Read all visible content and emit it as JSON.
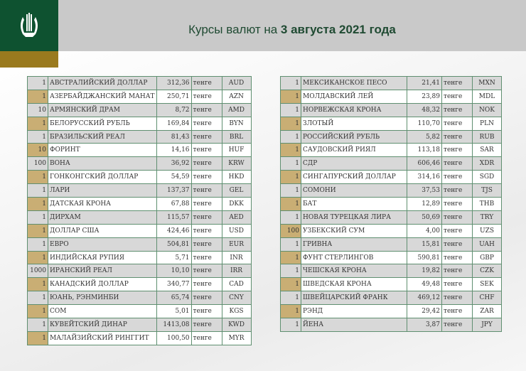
{
  "header": {
    "title_prefix": "Курсы валют на ",
    "title_date": "3 августа 2021 года"
  },
  "colors": {
    "brand_green": "#0e5230",
    "gold": "#9a7a1e",
    "row_gold": "#c9ae74",
    "row_gray": "#d8d8d8",
    "border": "#5f8f70"
  },
  "logo": {
    "icon": "national-bank-emblem"
  },
  "unit": "тенге",
  "left_table": [
    [
      "1",
      "АВСТРАЛИЙСКИЙ ДОЛЛАР",
      "312,36",
      "AUD"
    ],
    [
      "1",
      "АЗЕРБАЙДЖАНСКИЙ МАНАТ",
      "250,71",
      "AZN"
    ],
    [
      "10",
      "АРМЯНСКИЙ  ДРАМ",
      "8,72",
      "AMD"
    ],
    [
      "1",
      "БЕЛОРУССКИЙ РУБЛЬ",
      "169,84",
      "BYN"
    ],
    [
      "1",
      "БРАЗИЛЬСКИЙ РЕАЛ",
      "81,43",
      "BRL"
    ],
    [
      "10",
      "ФОРИНТ",
      "14,16",
      "HUF"
    ],
    [
      "100",
      "ВОНА",
      "36,92",
      "KRW"
    ],
    [
      "1",
      "ГОНКОНГСКИЙ ДОЛЛАР",
      "54,59",
      "HKD"
    ],
    [
      "1",
      "ЛАРИ",
      "137,37",
      "GEL"
    ],
    [
      "1",
      "ДАТСКАЯ КРОНА",
      "67,88",
      "DKK"
    ],
    [
      "1",
      "ДИРХАМ",
      "115,57",
      "AED"
    ],
    [
      "1",
      "ДОЛЛАР США",
      "424,46",
      "USD"
    ],
    [
      "1",
      "ЕВРО",
      "504,81",
      "EUR"
    ],
    [
      "1",
      "ИНДИЙСКАЯ РУПИЯ",
      "5,71",
      "INR"
    ],
    [
      "1000",
      "ИРАНСКИЙ РЕАЛ",
      "10,10",
      "IRR"
    ],
    [
      "1",
      "КАНАДСКИЙ ДОЛЛАР",
      "340,77",
      "CAD"
    ],
    [
      "1",
      "ЮАНЬ, РЭНМИНБИ",
      "65,74",
      "CNY"
    ],
    [
      "1",
      "СОМ",
      "5,01",
      "KGS"
    ],
    [
      "1",
      "КУВЕЙТСКИЙ ДИНАР",
      "1413,08",
      "KWD"
    ],
    [
      "1",
      "МАЛАЙЗИЙСКИЙ РИНГГИТ",
      "100,50",
      "MYR"
    ]
  ],
  "right_table": [
    [
      "1",
      "МЕКСИКАНСКОЕ ПЕСО",
      "21,41",
      "MXN"
    ],
    [
      "1",
      "МОЛДАВСКИЙ ЛЕЙ",
      "23,89",
      "MDL"
    ],
    [
      "1",
      "НОРВЕЖСКАЯ КРОНА",
      "48,32",
      "NOK"
    ],
    [
      "1",
      "ЗЛОТЫЙ",
      "110,70",
      "PLN"
    ],
    [
      "1",
      "РОССИЙСКИЙ РУБЛЬ",
      "5,82",
      "RUB"
    ],
    [
      "1",
      "САУДОВСКИЙ РИЯЛ",
      "113,18",
      "SAR"
    ],
    [
      "1",
      "СДР",
      "606,46",
      "XDR"
    ],
    [
      "1",
      "СИНГАПУРСКИЙ ДОЛЛАР",
      "314,16",
      "SGD"
    ],
    [
      "1",
      "СОМОНИ",
      "37,53",
      "TJS"
    ],
    [
      "1",
      "БАТ",
      "12,89",
      "THB"
    ],
    [
      "1",
      "НОВАЯ ТУРЕЦКАЯ ЛИРА",
      "50,69",
      "TRY"
    ],
    [
      "100",
      "УЗБЕКСКИЙ СУМ",
      "4,00",
      "UZS"
    ],
    [
      "1",
      "ГРИВНА",
      "15,81",
      "UAH"
    ],
    [
      "1",
      "ФУНТ СТЕРЛИНГОВ",
      "590,81",
      "GBP"
    ],
    [
      "1",
      "ЧЕШСКАЯ КРОНА",
      "19,82",
      "CZK"
    ],
    [
      "1",
      "ШВЕДСКАЯ КРОНА",
      "49,48",
      "SEK"
    ],
    [
      "1",
      "ШВЕЙЦАРСКИЙ ФРАНК",
      "469,12",
      "CHF"
    ],
    [
      "1",
      "РЭНД",
      "29,42",
      "ZAR"
    ],
    [
      "1",
      "ЙЕНА",
      "3,87",
      "JPY"
    ]
  ]
}
